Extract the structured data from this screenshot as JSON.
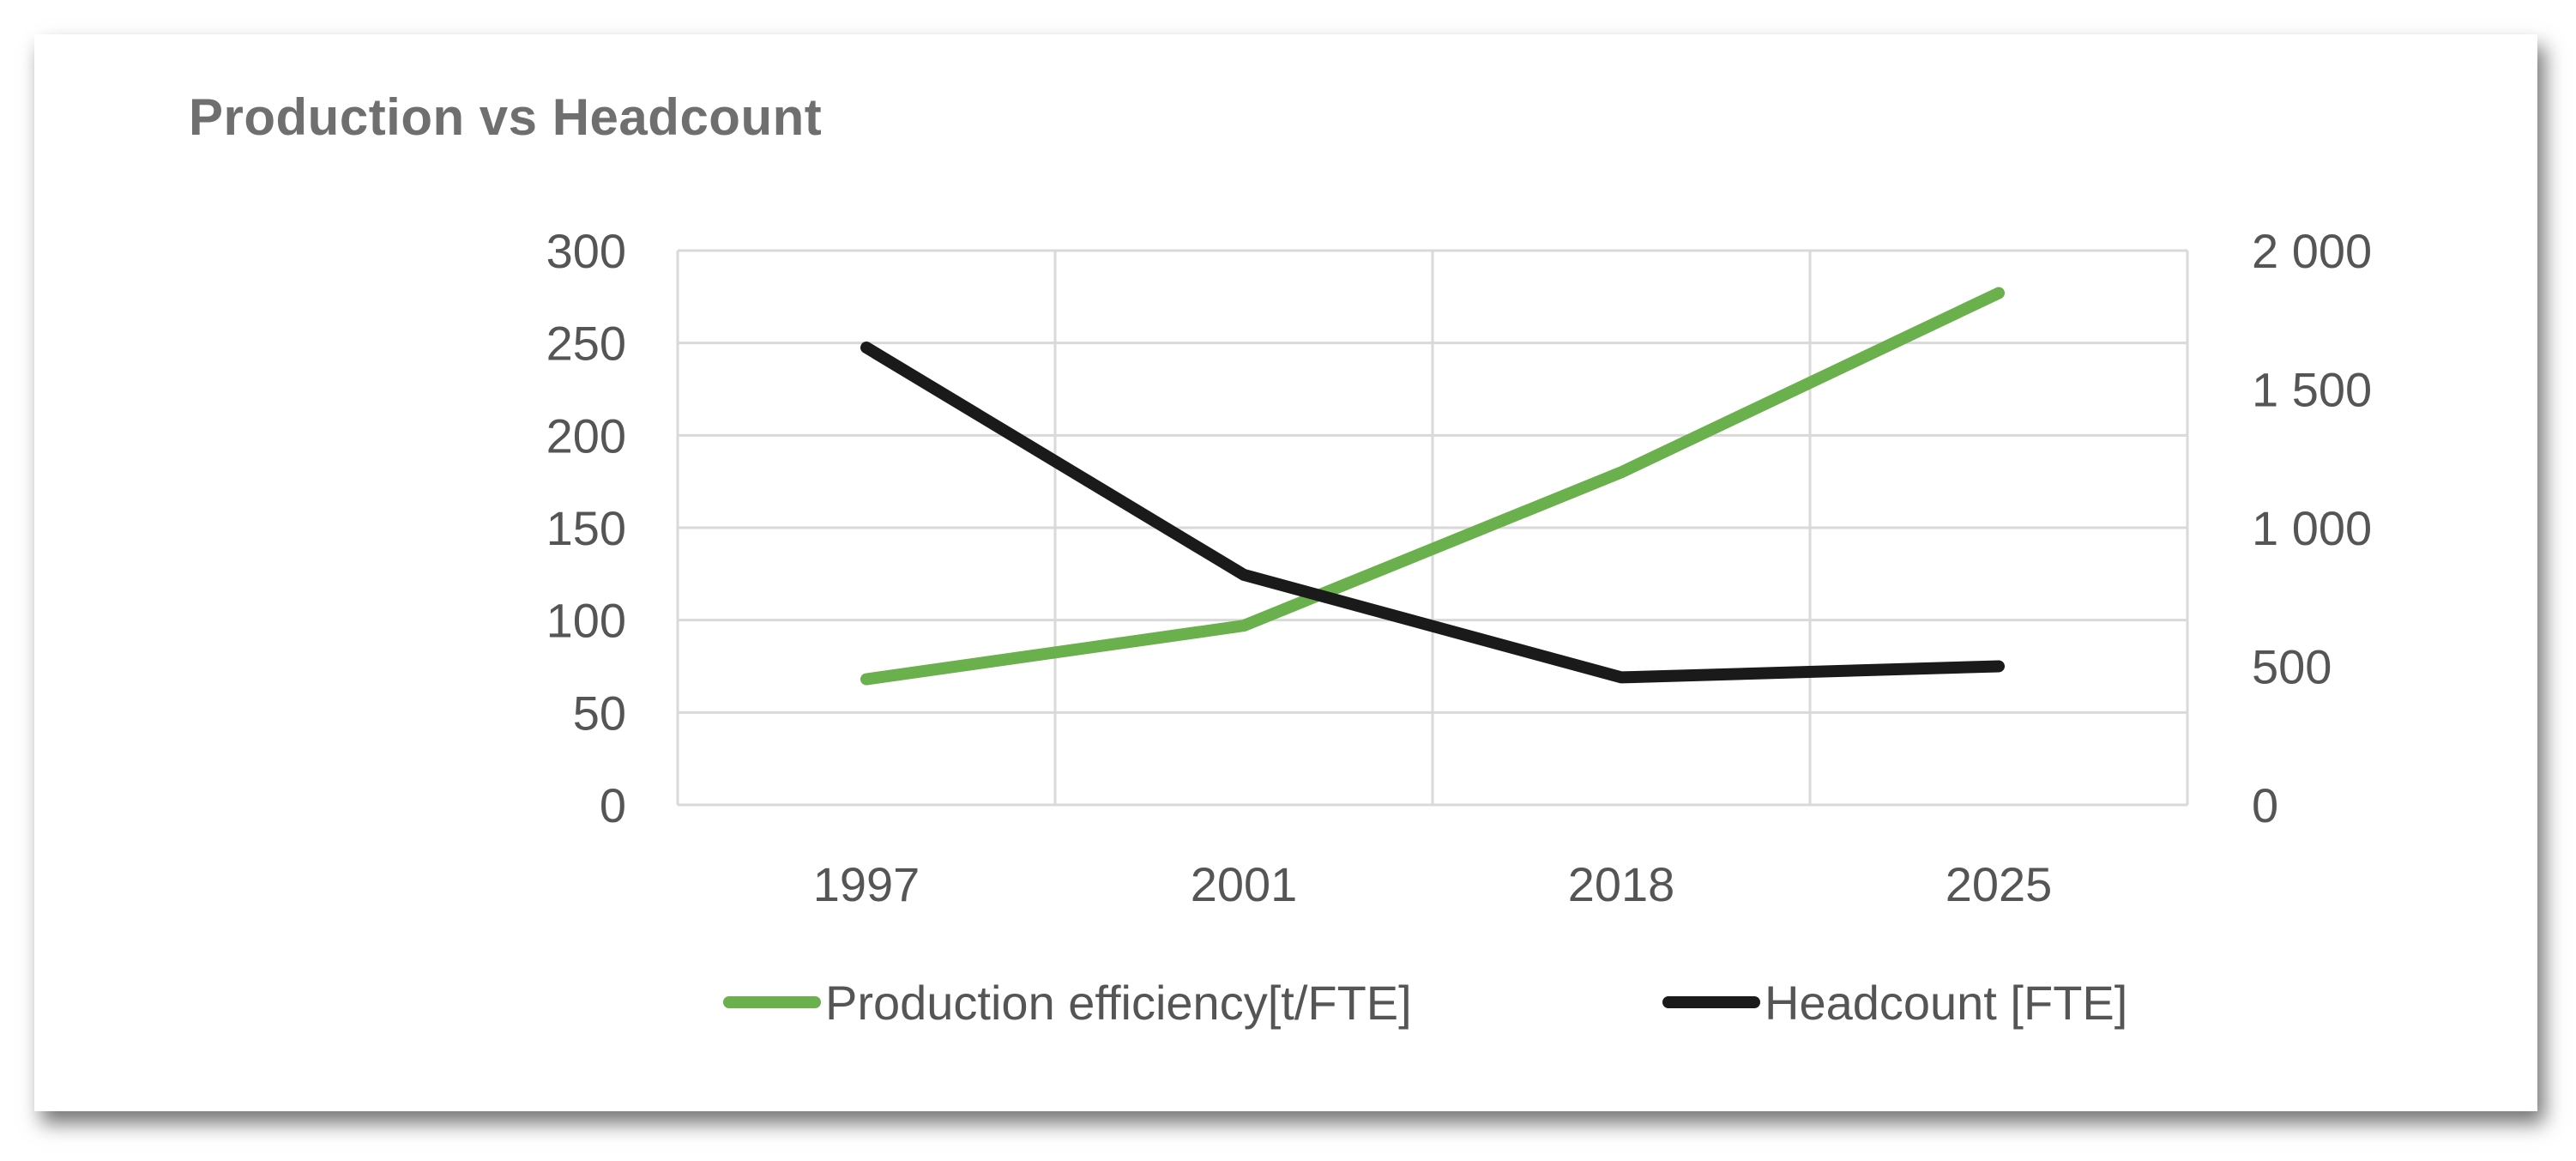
{
  "chart_data": {
    "type": "line",
    "title": "Production vs Headcount",
    "categories": [
      "1997",
      "2001",
      "2018",
      "2025"
    ],
    "series": [
      {
        "name": "Production efficiency[t/FTE]",
        "axis": "left",
        "color": "#6ab04c",
        "values": [
          68,
          97,
          180,
          277
        ]
      },
      {
        "name": "Headcount [FTE]",
        "axis": "right",
        "color": "#1a1a1a",
        "values": [
          1650,
          830,
          460,
          500
        ]
      }
    ],
    "left_axis": {
      "ylim": [
        0,
        300
      ],
      "ticks": [
        0,
        50,
        100,
        150,
        200,
        250,
        300
      ],
      "tick_labels": [
        "0",
        "50",
        "100",
        "150",
        "200",
        "250",
        "300"
      ]
    },
    "right_axis": {
      "ylim": [
        0,
        2000
      ],
      "ticks": [
        0,
        500,
        1000,
        1500,
        2000
      ],
      "tick_labels": [
        "0",
        "500",
        "1 000",
        "1 500",
        "2 000"
      ]
    },
    "grid": true,
    "legend": {
      "position": "bottom",
      "labels": [
        "Production efficiency[t/FTE]",
        "Headcount [FTE]"
      ]
    },
    "xlabel": "",
    "ylabel": ""
  }
}
